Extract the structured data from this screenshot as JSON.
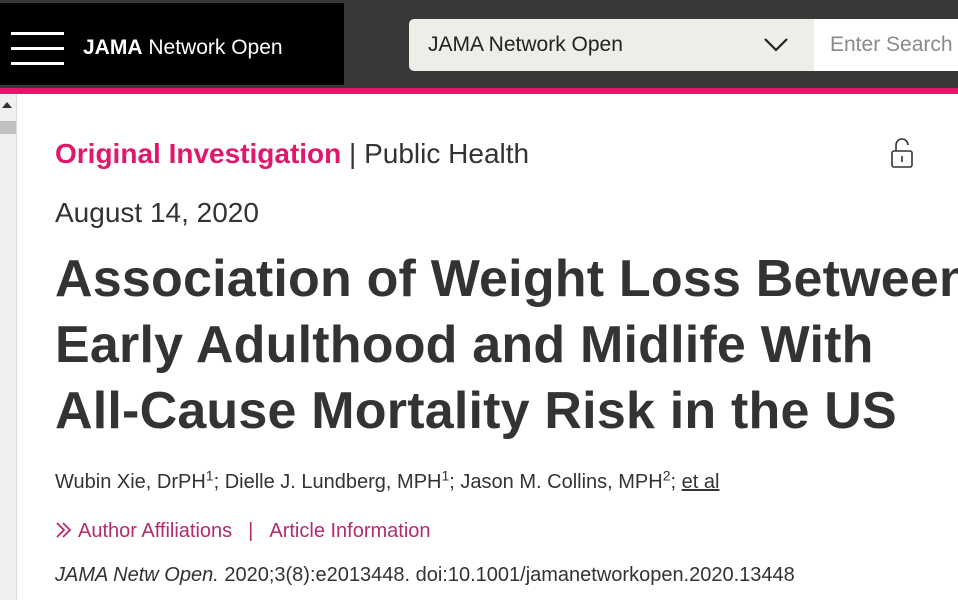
{
  "header": {
    "brand_bold": "JAMA",
    "brand_rest": " Network Open",
    "journal_select": "JAMA Network Open",
    "search_placeholder": "Enter Search"
  },
  "article": {
    "type": "Original Investigation",
    "separator": " | ",
    "topic": "Public Health",
    "date": "August 14, 2020",
    "title_lines": [
      "Association of Weight Loss Between",
      "Early Adulthood and Midlife With",
      "All-Cause Mortality Risk in the US"
    ],
    "authors": [
      {
        "name": "Wubin Xie, DrPH",
        "sup": "1",
        "after": "; "
      },
      {
        "name": "Dielle J. Lundberg, MPH",
        "sup": "1",
        "after": "; "
      },
      {
        "name": "Jason M. Collins, MPH",
        "sup": "2",
        "after": "; "
      }
    ],
    "et_al": "et al",
    "author_affiliations": "Author Affiliations",
    "link_divider": "|",
    "article_information": "Article Information",
    "citation_journal": "JAMA Netw Open.",
    "citation_rest": " 2020;3(8):e2013448. doi:10.1001/jamanetworkopen.2020.13448"
  },
  "colors": {
    "accent_pink": "#e0186c",
    "link_pink": "#b32a6f",
    "header_bg": "#383838",
    "brand_bg": "#000000"
  },
  "icons": [
    "menu-icon",
    "chevron-down-icon",
    "unlock-icon",
    "double-chevron-right-icon"
  ]
}
